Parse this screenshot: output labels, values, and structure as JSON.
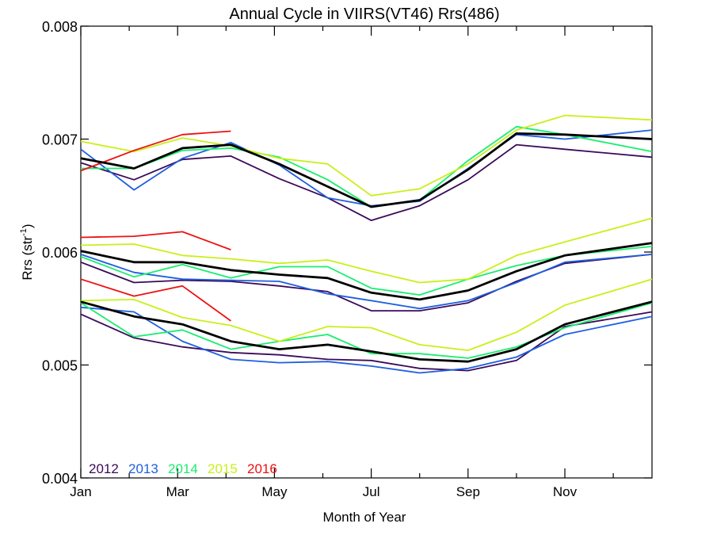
{
  "chart_data": {
    "type": "line",
    "title": "Annual Cycle in VIIRS(VT46) Rrs(486)",
    "xlabel": "Month of Year",
    "ylabel": "Rrs (str⁻¹)",
    "ylabel_main": "Rrs (str",
    "ylabel_sup": "-1",
    "ylabel_close": ")",
    "xlim": [
      1,
      12.8
    ],
    "ylim": [
      0.004,
      0.008
    ],
    "grid": false,
    "legend_placement": "bottom-left",
    "x_ticks": [
      {
        "value": 1,
        "label": "Jan"
      },
      {
        "value": 3,
        "label": "Mar"
      },
      {
        "value": 5,
        "label": "May"
      },
      {
        "value": 7,
        "label": "Jul"
      },
      {
        "value": 9,
        "label": "Sep"
      },
      {
        "value": 11,
        "label": "Nov"
      }
    ],
    "y_ticks": [
      {
        "value": 0.004,
        "label": "0.004"
      },
      {
        "value": 0.005,
        "label": "0.005"
      },
      {
        "value": 0.006,
        "label": "0.006"
      },
      {
        "value": 0.007,
        "label": "0.007"
      },
      {
        "value": 0.008,
        "label": "0.008"
      }
    ],
    "series": [
      {
        "name": "2012",
        "color": "#3b0a5a",
        "group": "high",
        "in_legend": true,
        "x": [
          1.0,
          2.1,
          3.1,
          4.1,
          5.1,
          6.1,
          7.0,
          8.0,
          9.0,
          10.0,
          11.0,
          12.8
        ],
        "y": [
          0.00679,
          0.00664,
          0.00682,
          0.00685,
          0.00665,
          0.00648,
          0.00628,
          0.00641,
          0.00664,
          0.00695,
          0.00691,
          0.00684
        ]
      },
      {
        "name": "2013",
        "color": "#1e5fe0",
        "group": "high",
        "in_legend": true,
        "x": [
          1.0,
          2.1,
          3.1,
          4.1,
          5.1,
          6.1,
          7.0,
          8.0,
          9.0,
          10.0,
          11.0,
          12.8
        ],
        "y": [
          0.00691,
          0.00655,
          0.00683,
          0.00697,
          0.00677,
          0.00648,
          0.00641,
          0.00645,
          0.00674,
          0.00704,
          0.007,
          0.00708
        ]
      },
      {
        "name": "2014",
        "color": "#1aee6e",
        "group": "high",
        "in_legend": true,
        "x": [
          1.0,
          2.1,
          3.1,
          4.1,
          5.1,
          6.1,
          7.0,
          8.0,
          9.0,
          10.0,
          11.0,
          12.8
        ],
        "y": [
          0.00674,
          0.00674,
          0.0069,
          0.00692,
          0.00684,
          0.00664,
          0.0064,
          0.00646,
          0.00681,
          0.00711,
          0.00704,
          0.00689
        ]
      },
      {
        "name": "2015",
        "color": "#c8f01a",
        "group": "high",
        "in_legend": true,
        "x": [
          1.0,
          2.1,
          3.1,
          4.1,
          5.1,
          6.1,
          7.0,
          8.0,
          9.0,
          10.0,
          11.0,
          12.8
        ],
        "y": [
          0.00698,
          0.00689,
          0.00701,
          0.00694,
          0.00683,
          0.00678,
          0.0065,
          0.00656,
          0.00678,
          0.00708,
          0.00721,
          0.00717
        ]
      },
      {
        "name": "2016",
        "color": "#ee1111",
        "group": "high",
        "in_legend": true,
        "x": [
          1.0,
          2.1,
          3.1,
          4.1
        ],
        "y": [
          0.00672,
          0.0069,
          0.00704,
          0.00707
        ]
      },
      {
        "name": "",
        "color": "#000000",
        "group": "high-mean",
        "in_legend": false,
        "x": [
          1.0,
          2.1,
          3.1,
          4.1,
          5.1,
          6.1,
          7.0,
          8.0,
          9.0,
          10.0,
          11.0,
          12.8
        ],
        "y": [
          0.00683,
          0.00674,
          0.00692,
          0.00695,
          0.00678,
          0.00658,
          0.0064,
          0.00646,
          0.00673,
          0.00705,
          0.00704,
          0.007
        ]
      },
      {
        "name": "2012",
        "color": "#3b0a5a",
        "group": "mid",
        "in_legend": false,
        "x": [
          1.0,
          2.1,
          3.1,
          4.1,
          5.1,
          6.1,
          7.0,
          8.0,
          9.0,
          10.0,
          11.0,
          12.8
        ],
        "y": [
          0.00591,
          0.00573,
          0.00575,
          0.00574,
          0.0057,
          0.00565,
          0.00548,
          0.00548,
          0.00555,
          0.00574,
          0.0059,
          0.00598
        ]
      },
      {
        "name": "2013",
        "color": "#1e5fe0",
        "group": "mid",
        "in_legend": false,
        "x": [
          1.0,
          2.1,
          3.1,
          4.1,
          5.1,
          6.1,
          7.0,
          8.0,
          9.0,
          10.0,
          11.0,
          12.8
        ],
        "y": [
          0.00598,
          0.00582,
          0.00576,
          0.00575,
          0.00574,
          0.00563,
          0.00557,
          0.0055,
          0.00557,
          0.00573,
          0.00591,
          0.00598
        ]
      },
      {
        "name": "2014",
        "color": "#1aee6e",
        "group": "mid",
        "in_legend": false,
        "x": [
          1.0,
          2.1,
          3.1,
          4.1,
          5.1,
          6.1,
          7.0,
          8.0,
          9.0,
          10.0,
          11.0,
          12.8
        ],
        "y": [
          0.00596,
          0.00578,
          0.00589,
          0.00577,
          0.00587,
          0.00587,
          0.00568,
          0.00562,
          0.00576,
          0.00588,
          0.00597,
          0.00605
        ]
      },
      {
        "name": "2015",
        "color": "#c8f01a",
        "group": "mid",
        "in_legend": false,
        "x": [
          1.0,
          2.1,
          3.1,
          4.1,
          5.1,
          6.1,
          7.0,
          8.0,
          9.0,
          10.0,
          11.0,
          12.8
        ],
        "y": [
          0.00606,
          0.00607,
          0.00597,
          0.00594,
          0.0059,
          0.00593,
          0.00583,
          0.00573,
          0.00576,
          0.00597,
          0.00609,
          0.0063
        ]
      },
      {
        "name": "2016",
        "color": "#ee1111",
        "group": "mid",
        "in_legend": false,
        "x": [
          1.0,
          2.1,
          3.1,
          4.1
        ],
        "y": [
          0.00613,
          0.00614,
          0.00618,
          0.00602
        ]
      },
      {
        "name": "",
        "color": "#000000",
        "group": "mid-mean",
        "in_legend": false,
        "x": [
          1.0,
          2.1,
          3.1,
          4.1,
          5.1,
          6.1,
          7.0,
          8.0,
          9.0,
          10.0,
          11.0,
          12.8
        ],
        "y": [
          0.00601,
          0.00591,
          0.00591,
          0.00584,
          0.0058,
          0.00577,
          0.00564,
          0.00558,
          0.00566,
          0.00583,
          0.00597,
          0.00608
        ]
      },
      {
        "name": "2012",
        "color": "#3b0a5a",
        "group": "low",
        "in_legend": false,
        "x": [
          1.0,
          2.1,
          3.1,
          4.1,
          5.1,
          6.1,
          7.0,
          8.0,
          9.0,
          10.0,
          11.0,
          12.8
        ],
        "y": [
          0.00545,
          0.00524,
          0.00516,
          0.00511,
          0.00509,
          0.00505,
          0.00504,
          0.00497,
          0.00495,
          0.00504,
          0.00534,
          0.00547
        ]
      },
      {
        "name": "2013",
        "color": "#1e5fe0",
        "group": "low",
        "in_legend": false,
        "x": [
          1.0,
          2.1,
          3.1,
          4.1,
          5.1,
          6.1,
          7.0,
          8.0,
          9.0,
          10.0,
          11.0,
          12.8
        ],
        "y": [
          0.00551,
          0.00547,
          0.00521,
          0.00505,
          0.00502,
          0.00503,
          0.00499,
          0.00493,
          0.00497,
          0.00507,
          0.00527,
          0.00543
        ]
      },
      {
        "name": "2014",
        "color": "#1aee6e",
        "group": "low",
        "in_legend": false,
        "x": [
          1.0,
          2.1,
          3.1,
          4.1,
          5.1,
          6.1,
          7.0,
          8.0,
          9.0,
          10.0,
          11.0,
          12.8
        ],
        "y": [
          0.00555,
          0.00525,
          0.00531,
          0.00514,
          0.00521,
          0.00527,
          0.0051,
          0.0051,
          0.00506,
          0.00516,
          0.00533,
          0.00555
        ]
      },
      {
        "name": "2015",
        "color": "#c8f01a",
        "group": "low",
        "in_legend": false,
        "x": [
          1.0,
          2.1,
          3.1,
          4.1,
          5.1,
          6.1,
          7.0,
          8.0,
          9.0,
          10.0,
          11.0,
          12.8
        ],
        "y": [
          0.00557,
          0.00558,
          0.00542,
          0.00535,
          0.00521,
          0.00534,
          0.00533,
          0.00518,
          0.00513,
          0.00529,
          0.00553,
          0.00576
        ]
      },
      {
        "name": "2016",
        "color": "#ee1111",
        "group": "low",
        "in_legend": false,
        "x": [
          1.0,
          2.1,
          3.1,
          4.1
        ],
        "y": [
          0.00576,
          0.00561,
          0.0057,
          0.00539
        ]
      },
      {
        "name": "",
        "color": "#000000",
        "group": "low-mean",
        "in_legend": false,
        "x": [
          1.0,
          2.1,
          3.1,
          4.1,
          5.1,
          6.1,
          7.0,
          8.0,
          9.0,
          10.0,
          11.0,
          12.8
        ],
        "y": [
          0.00556,
          0.00543,
          0.00536,
          0.00521,
          0.00514,
          0.00518,
          0.00512,
          0.00505,
          0.00503,
          0.00514,
          0.00536,
          0.00556
        ]
      }
    ],
    "legend": [
      {
        "label": "2012",
        "color": "#3b0a5a"
      },
      {
        "label": "2013",
        "color": "#1e5fe0"
      },
      {
        "label": "2014",
        "color": "#1aee6e"
      },
      {
        "label": "2015",
        "color": "#c8f01a"
      },
      {
        "label": "2016",
        "color": "#ee1111"
      }
    ]
  }
}
